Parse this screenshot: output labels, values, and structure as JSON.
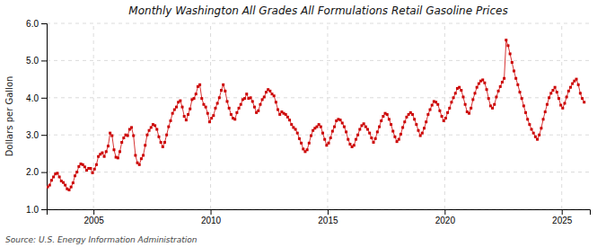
{
  "chart_data": {
    "type": "line",
    "title": "Monthly Washington All Grades All Formulations Retail Gasoline Prices",
    "ylabel": "Dollars per Gallon",
    "source": "Source: U.S. Energy Information Administration",
    "color": "#cc0000",
    "marker": "square",
    "line_style": "solid",
    "grid": true,
    "xlim": [
      2003.0,
      2026.2
    ],
    "xticks": [
      2005,
      2010,
      2015,
      2020,
      2025
    ],
    "ylim": [
      1.0,
      6.0
    ],
    "yticks": [
      {
        "value": 1.0,
        "label": "1.0"
      },
      {
        "value": 2.0,
        "label": "2.0"
      },
      {
        "value": 3.0,
        "label": "3.0"
      },
      {
        "value": 4.0,
        "label": "4.0"
      },
      {
        "value": 5.0,
        "label": "5.0"
      },
      {
        "value": 6.0,
        "label": "6.0"
      }
    ],
    "x": [
      2003.041667,
      2003.125,
      2003.208333,
      2003.291667,
      2003.375,
      2003.458333,
      2003.541667,
      2003.625,
      2003.708333,
      2003.791667,
      2003.875,
      2003.958333,
      2004.041667,
      2004.125,
      2004.208333,
      2004.291667,
      2004.375,
      2004.458333,
      2004.541667,
      2004.625,
      2004.708333,
      2004.791667,
      2004.875,
      2004.958333,
      2005.041667,
      2005.125,
      2005.208333,
      2005.291667,
      2005.375,
      2005.458333,
      2005.541667,
      2005.625,
      2005.708333,
      2005.791667,
      2005.875,
      2005.958333,
      2006.041667,
      2006.125,
      2006.208333,
      2006.291667,
      2006.375,
      2006.458333,
      2006.541667,
      2006.625,
      2006.708333,
      2006.791667,
      2006.875,
      2006.958333,
      2007.041667,
      2007.125,
      2007.208333,
      2007.291667,
      2007.375,
      2007.458333,
      2007.541667,
      2007.625,
      2007.708333,
      2007.791667,
      2007.875,
      2007.958333,
      2008.041667,
      2008.125,
      2008.208333,
      2008.291667,
      2008.375,
      2008.458333,
      2008.541667,
      2008.625,
      2008.708333,
      2008.791667,
      2008.875,
      2008.958333,
      2009.041667,
      2009.125,
      2009.208333,
      2009.291667,
      2009.375,
      2009.458333,
      2009.541667,
      2009.625,
      2009.708333,
      2009.791667,
      2009.875,
      2009.958333,
      2010.041667,
      2010.125,
      2010.208333,
      2010.291667,
      2010.375,
      2010.458333,
      2010.541667,
      2010.625,
      2010.708333,
      2010.791667,
      2010.875,
      2010.958333,
      2011.041667,
      2011.125,
      2011.208333,
      2011.291667,
      2011.375,
      2011.458333,
      2011.541667,
      2011.625,
      2011.708333,
      2011.791667,
      2011.875,
      2011.958333,
      2012.041667,
      2012.125,
      2012.208333,
      2012.291667,
      2012.375,
      2012.458333,
      2012.541667,
      2012.625,
      2012.708333,
      2012.791667,
      2012.875,
      2012.958333,
      2013.041667,
      2013.125,
      2013.208333,
      2013.291667,
      2013.375,
      2013.458333,
      2013.541667,
      2013.625,
      2013.708333,
      2013.791667,
      2013.875,
      2013.958333,
      2014.041667,
      2014.125,
      2014.208333,
      2014.291667,
      2014.375,
      2014.458333,
      2014.541667,
      2014.625,
      2014.708333,
      2014.791667,
      2014.875,
      2014.958333,
      2015.041667,
      2015.125,
      2015.208333,
      2015.291667,
      2015.375,
      2015.458333,
      2015.541667,
      2015.625,
      2015.708333,
      2015.791667,
      2015.875,
      2015.958333,
      2016.041667,
      2016.125,
      2016.208333,
      2016.291667,
      2016.375,
      2016.458333,
      2016.541667,
      2016.625,
      2016.708333,
      2016.791667,
      2016.875,
      2016.958333,
      2017.041667,
      2017.125,
      2017.208333,
      2017.291667,
      2017.375,
      2017.458333,
      2017.541667,
      2017.625,
      2017.708333,
      2017.791667,
      2017.875,
      2017.958333,
      2018.041667,
      2018.125,
      2018.208333,
      2018.291667,
      2018.375,
      2018.458333,
      2018.541667,
      2018.625,
      2018.708333,
      2018.791667,
      2018.875,
      2018.958333,
      2019.041667,
      2019.125,
      2019.208333,
      2019.291667,
      2019.375,
      2019.458333,
      2019.541667,
      2019.625,
      2019.708333,
      2019.791667,
      2019.875,
      2019.958333,
      2020.041667,
      2020.125,
      2020.208333,
      2020.291667,
      2020.375,
      2020.458333,
      2020.541667,
      2020.625,
      2020.708333,
      2020.791667,
      2020.875,
      2020.958333,
      2021.041667,
      2021.125,
      2021.208333,
      2021.291667,
      2021.375,
      2021.458333,
      2021.541667,
      2021.625,
      2021.708333,
      2021.791667,
      2021.875,
      2021.958333,
      2022.041667,
      2022.125,
      2022.208333,
      2022.291667,
      2022.375,
      2022.458333,
      2022.541667,
      2022.625,
      2022.708333,
      2022.791667,
      2022.875,
      2022.958333,
      2023.041667,
      2023.125,
      2023.208333,
      2023.291667,
      2023.375,
      2023.458333,
      2023.541667,
      2023.625,
      2023.708333,
      2023.791667,
      2023.875,
      2023.958333,
      2024.041667,
      2024.125,
      2024.208333,
      2024.291667,
      2024.375,
      2024.458333,
      2024.541667,
      2024.625,
      2024.708333,
      2024.791667,
      2024.875,
      2024.958333,
      2025.041667,
      2025.125,
      2025.208333,
      2025.291667,
      2025.375,
      2025.458333,
      2025.541667,
      2025.625,
      2025.708333,
      2025.791667,
      2025.875,
      2025.958333
    ],
    "values": [
      1.6,
      1.65,
      1.78,
      1.87,
      1.95,
      1.97,
      1.87,
      1.76,
      1.72,
      1.65,
      1.55,
      1.52,
      1.6,
      1.71,
      1.9,
      2.0,
      2.15,
      2.22,
      2.2,
      2.14,
      2.05,
      2.1,
      2.1,
      1.98,
      2.08,
      2.2,
      2.42,
      2.48,
      2.52,
      2.42,
      2.55,
      2.7,
      3.05,
      2.98,
      2.6,
      2.4,
      2.38,
      2.55,
      2.8,
      2.92,
      3.0,
      2.98,
      3.15,
      3.2,
      2.98,
      2.45,
      2.25,
      2.2,
      2.36,
      2.45,
      2.72,
      3.0,
      3.12,
      3.2,
      3.28,
      3.25,
      3.15,
      2.95,
      2.8,
      2.68,
      2.8,
      3.0,
      3.22,
      3.38,
      3.58,
      3.68,
      3.75,
      3.88,
      3.92,
      3.75,
      3.5,
      3.4,
      3.55,
      3.7,
      3.95,
      3.98,
      4.1,
      4.3,
      4.35,
      3.98,
      3.82,
      3.75,
      3.58,
      3.35,
      3.45,
      3.52,
      3.72,
      3.85,
      4.0,
      4.2,
      4.35,
      4.18,
      3.9,
      3.72,
      3.55,
      3.45,
      3.42,
      3.6,
      3.72,
      3.82,
      3.95,
      3.98,
      4.1,
      3.98,
      4.0,
      3.9,
      3.75,
      3.6,
      3.65,
      3.82,
      3.95,
      4.02,
      4.15,
      4.22,
      4.18,
      4.1,
      4.05,
      3.88,
      3.68,
      3.55,
      3.62,
      3.58,
      3.55,
      3.48,
      3.4,
      3.28,
      3.2,
      3.15,
      3.05,
      2.9,
      2.78,
      2.62,
      2.55,
      2.6,
      2.78,
      2.98,
      3.12,
      3.18,
      3.22,
      3.28,
      3.22,
      3.05,
      2.88,
      2.72,
      2.78,
      2.92,
      3.1,
      3.22,
      3.38,
      3.42,
      3.4,
      3.32,
      3.22,
      3.08,
      2.88,
      2.75,
      2.68,
      2.72,
      2.88,
      3.0,
      3.15,
      3.25,
      3.3,
      3.22,
      3.15,
      3.05,
      2.92,
      2.8,
      2.9,
      3.08,
      3.22,
      3.38,
      3.5,
      3.58,
      3.55,
      3.42,
      3.28,
      3.1,
      2.95,
      2.82,
      2.88,
      3.02,
      3.2,
      3.35,
      3.48,
      3.55,
      3.6,
      3.55,
      3.42,
      3.28,
      3.12,
      2.98,
      3.05,
      3.18,
      3.35,
      3.55,
      3.68,
      3.8,
      3.9,
      3.88,
      3.82,
      3.65,
      3.5,
      3.38,
      3.45,
      3.6,
      3.72,
      3.88,
      4.0,
      4.12,
      4.25,
      4.28,
      4.2,
      4.02,
      3.82,
      3.62,
      3.58,
      3.72,
      3.95,
      4.12,
      4.28,
      4.38,
      4.45,
      4.48,
      4.4,
      4.22,
      3.98,
      3.78,
      3.72,
      3.82,
      4.02,
      4.18,
      4.3,
      4.42,
      4.52,
      5.55,
      5.4,
      5.18,
      4.95,
      4.72,
      4.52,
      4.35,
      4.15,
      3.98,
      3.78,
      3.6,
      3.42,
      3.28,
      3.15,
      3.05,
      2.95,
      2.88,
      3.0,
      3.18,
      3.42,
      3.62,
      3.82,
      4.0,
      4.12,
      4.2,
      4.28,
      4.15,
      3.98,
      3.8,
      3.72,
      3.85,
      4.02,
      4.18,
      4.28,
      4.38,
      4.45,
      4.5,
      4.35,
      4.12,
      3.98,
      3.88
    ]
  }
}
